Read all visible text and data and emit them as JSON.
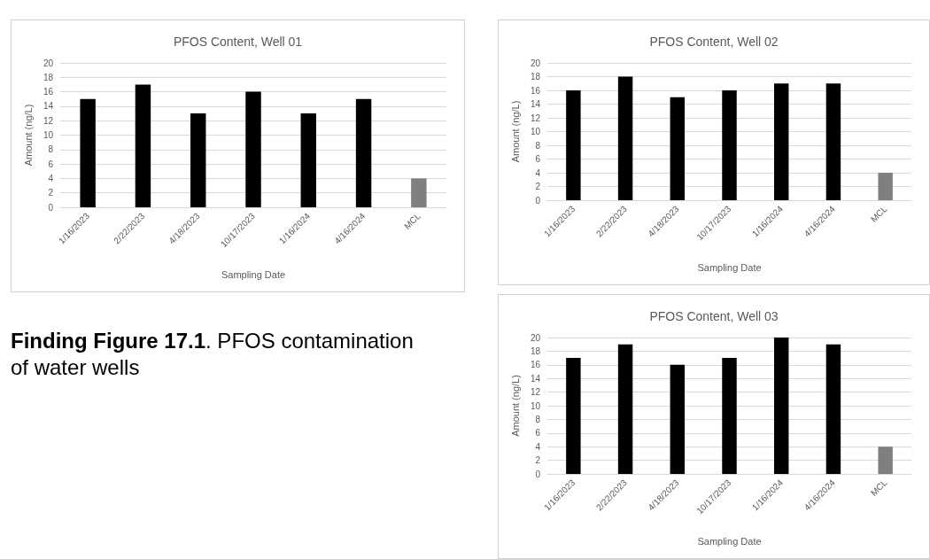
{
  "chart_data": [
    {
      "type": "bar",
      "title": "PFOS Content, Well 01",
      "xlabel": "Sampling Date",
      "ylabel": "Amount (ng/L)",
      "categories": [
        "1/16/2023",
        "2/22/2023",
        "4/18/2023",
        "10/17/2023",
        "1/16/2024",
        "4/16/2024",
        "MCL"
      ],
      "values": [
        15,
        17,
        13,
        16,
        13,
        15,
        4
      ],
      "colors": [
        "#000000",
        "#000000",
        "#000000",
        "#000000",
        "#000000",
        "#000000",
        "#7f7f7f"
      ],
      "ylim": [
        0,
        20
      ],
      "yticks": [
        0,
        2,
        4,
        6,
        8,
        10,
        12,
        14,
        16,
        18,
        20
      ],
      "grid": "y"
    },
    {
      "type": "bar",
      "title": "PFOS Content, Well 02",
      "xlabel": "Sampling Date",
      "ylabel": "Amount (ng/L)",
      "categories": [
        "1/16/2023",
        "2/22/2023",
        "4/18/2023",
        "10/17/2023",
        "1/16/2024",
        "4/16/2024",
        "MCL"
      ],
      "values": [
        16,
        18,
        15,
        16,
        17,
        17,
        4
      ],
      "colors": [
        "#000000",
        "#000000",
        "#000000",
        "#000000",
        "#000000",
        "#000000",
        "#7f7f7f"
      ],
      "ylim": [
        0,
        20
      ],
      "yticks": [
        0,
        2,
        4,
        6,
        8,
        10,
        12,
        14,
        16,
        18,
        20
      ],
      "grid": "y"
    },
    {
      "type": "bar",
      "title": "PFOS Content, Well 03",
      "xlabel": "Sampling Date",
      "ylabel": "Amount (ng/L)",
      "categories": [
        "1/16/2023",
        "2/22/2023",
        "4/18/2023",
        "10/17/2023",
        "1/16/2024",
        "4/16/2024",
        "MCL"
      ],
      "values": [
        17,
        19,
        16,
        17,
        20,
        19,
        4
      ],
      "colors": [
        "#000000",
        "#000000",
        "#000000",
        "#000000",
        "#000000",
        "#000000",
        "#7f7f7f"
      ],
      "ylim": [
        0,
        20
      ],
      "yticks": [
        0,
        2,
        4,
        6,
        8,
        10,
        12,
        14,
        16,
        18,
        20
      ],
      "grid": "y"
    },
    {
      "type": "other",
      "title": "Finding Figure 17.1",
      "annotations": [
        ". PFOS contamination of water wells"
      ]
    }
  ]
}
